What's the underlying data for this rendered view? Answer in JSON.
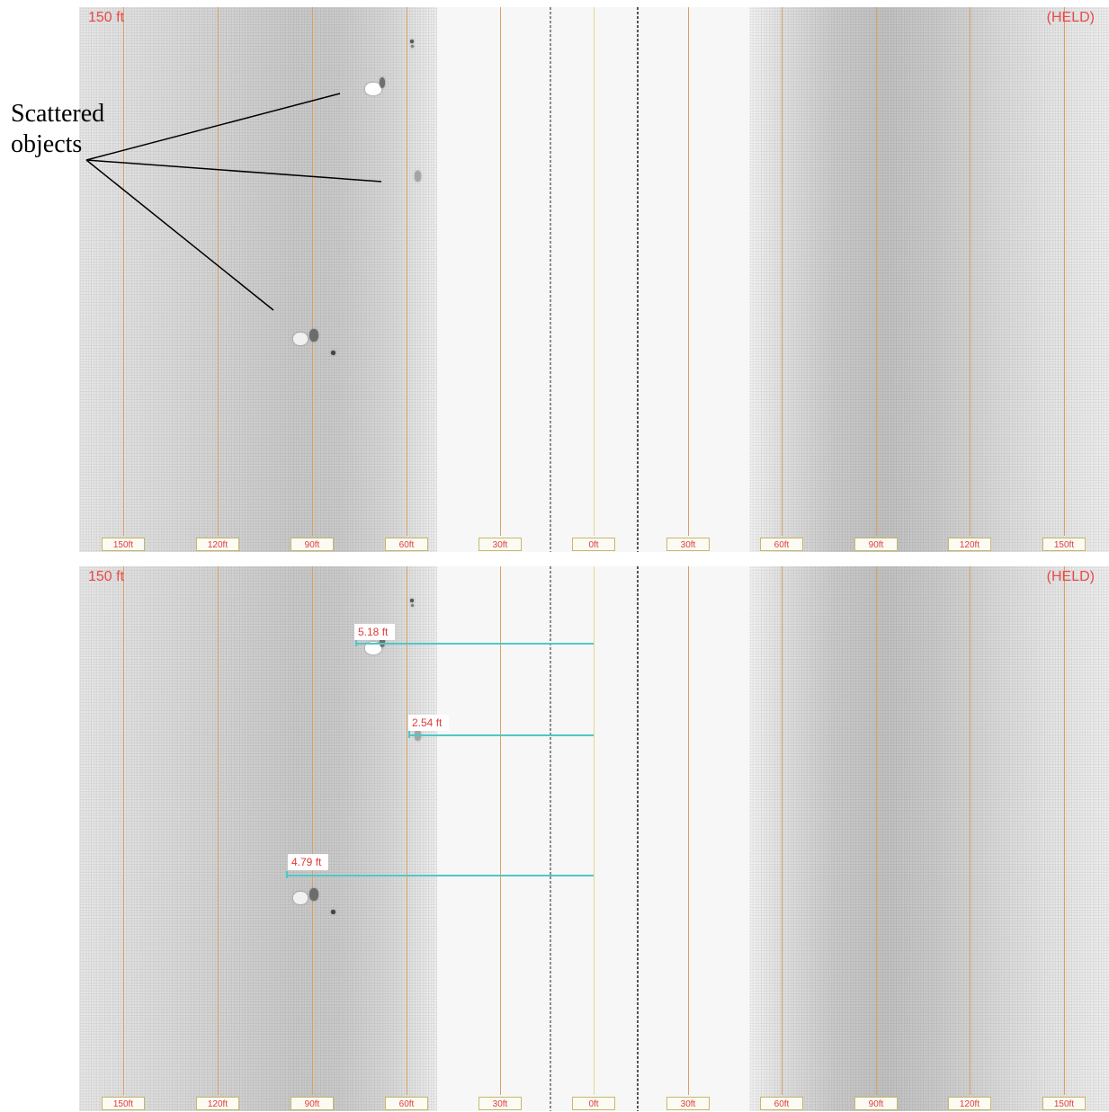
{
  "annotation": {
    "text": "Scattered\nobjects"
  },
  "colors": {
    "grid_line": "#d9a064",
    "center_line": "#e6d68a",
    "label_text": "#e03c3c",
    "measure_line": "#4fc7c7"
  },
  "icons": {
    "target": "sonar-target-blob"
  },
  "panels": [
    {
      "range_label": "150 ft",
      "status_label": "(HELD)",
      "tick_labels": [
        "150ft",
        "120ft",
        "90ft",
        "60ft",
        "30ft",
        "0ft",
        "30ft",
        "60ft",
        "90ft",
        "120ft",
        "150ft"
      ],
      "measurements": []
    },
    {
      "range_label": "150 ft",
      "status_label": "(HELD)",
      "tick_labels": [
        "150ft",
        "120ft",
        "90ft",
        "60ft",
        "30ft",
        "0ft",
        "30ft",
        "60ft",
        "90ft",
        "120ft",
        "150ft"
      ],
      "measurements": [
        {
          "label": "5.18 ft"
        },
        {
          "label": "2.54 ft"
        },
        {
          "label": "4.79 ft"
        }
      ]
    }
  ]
}
